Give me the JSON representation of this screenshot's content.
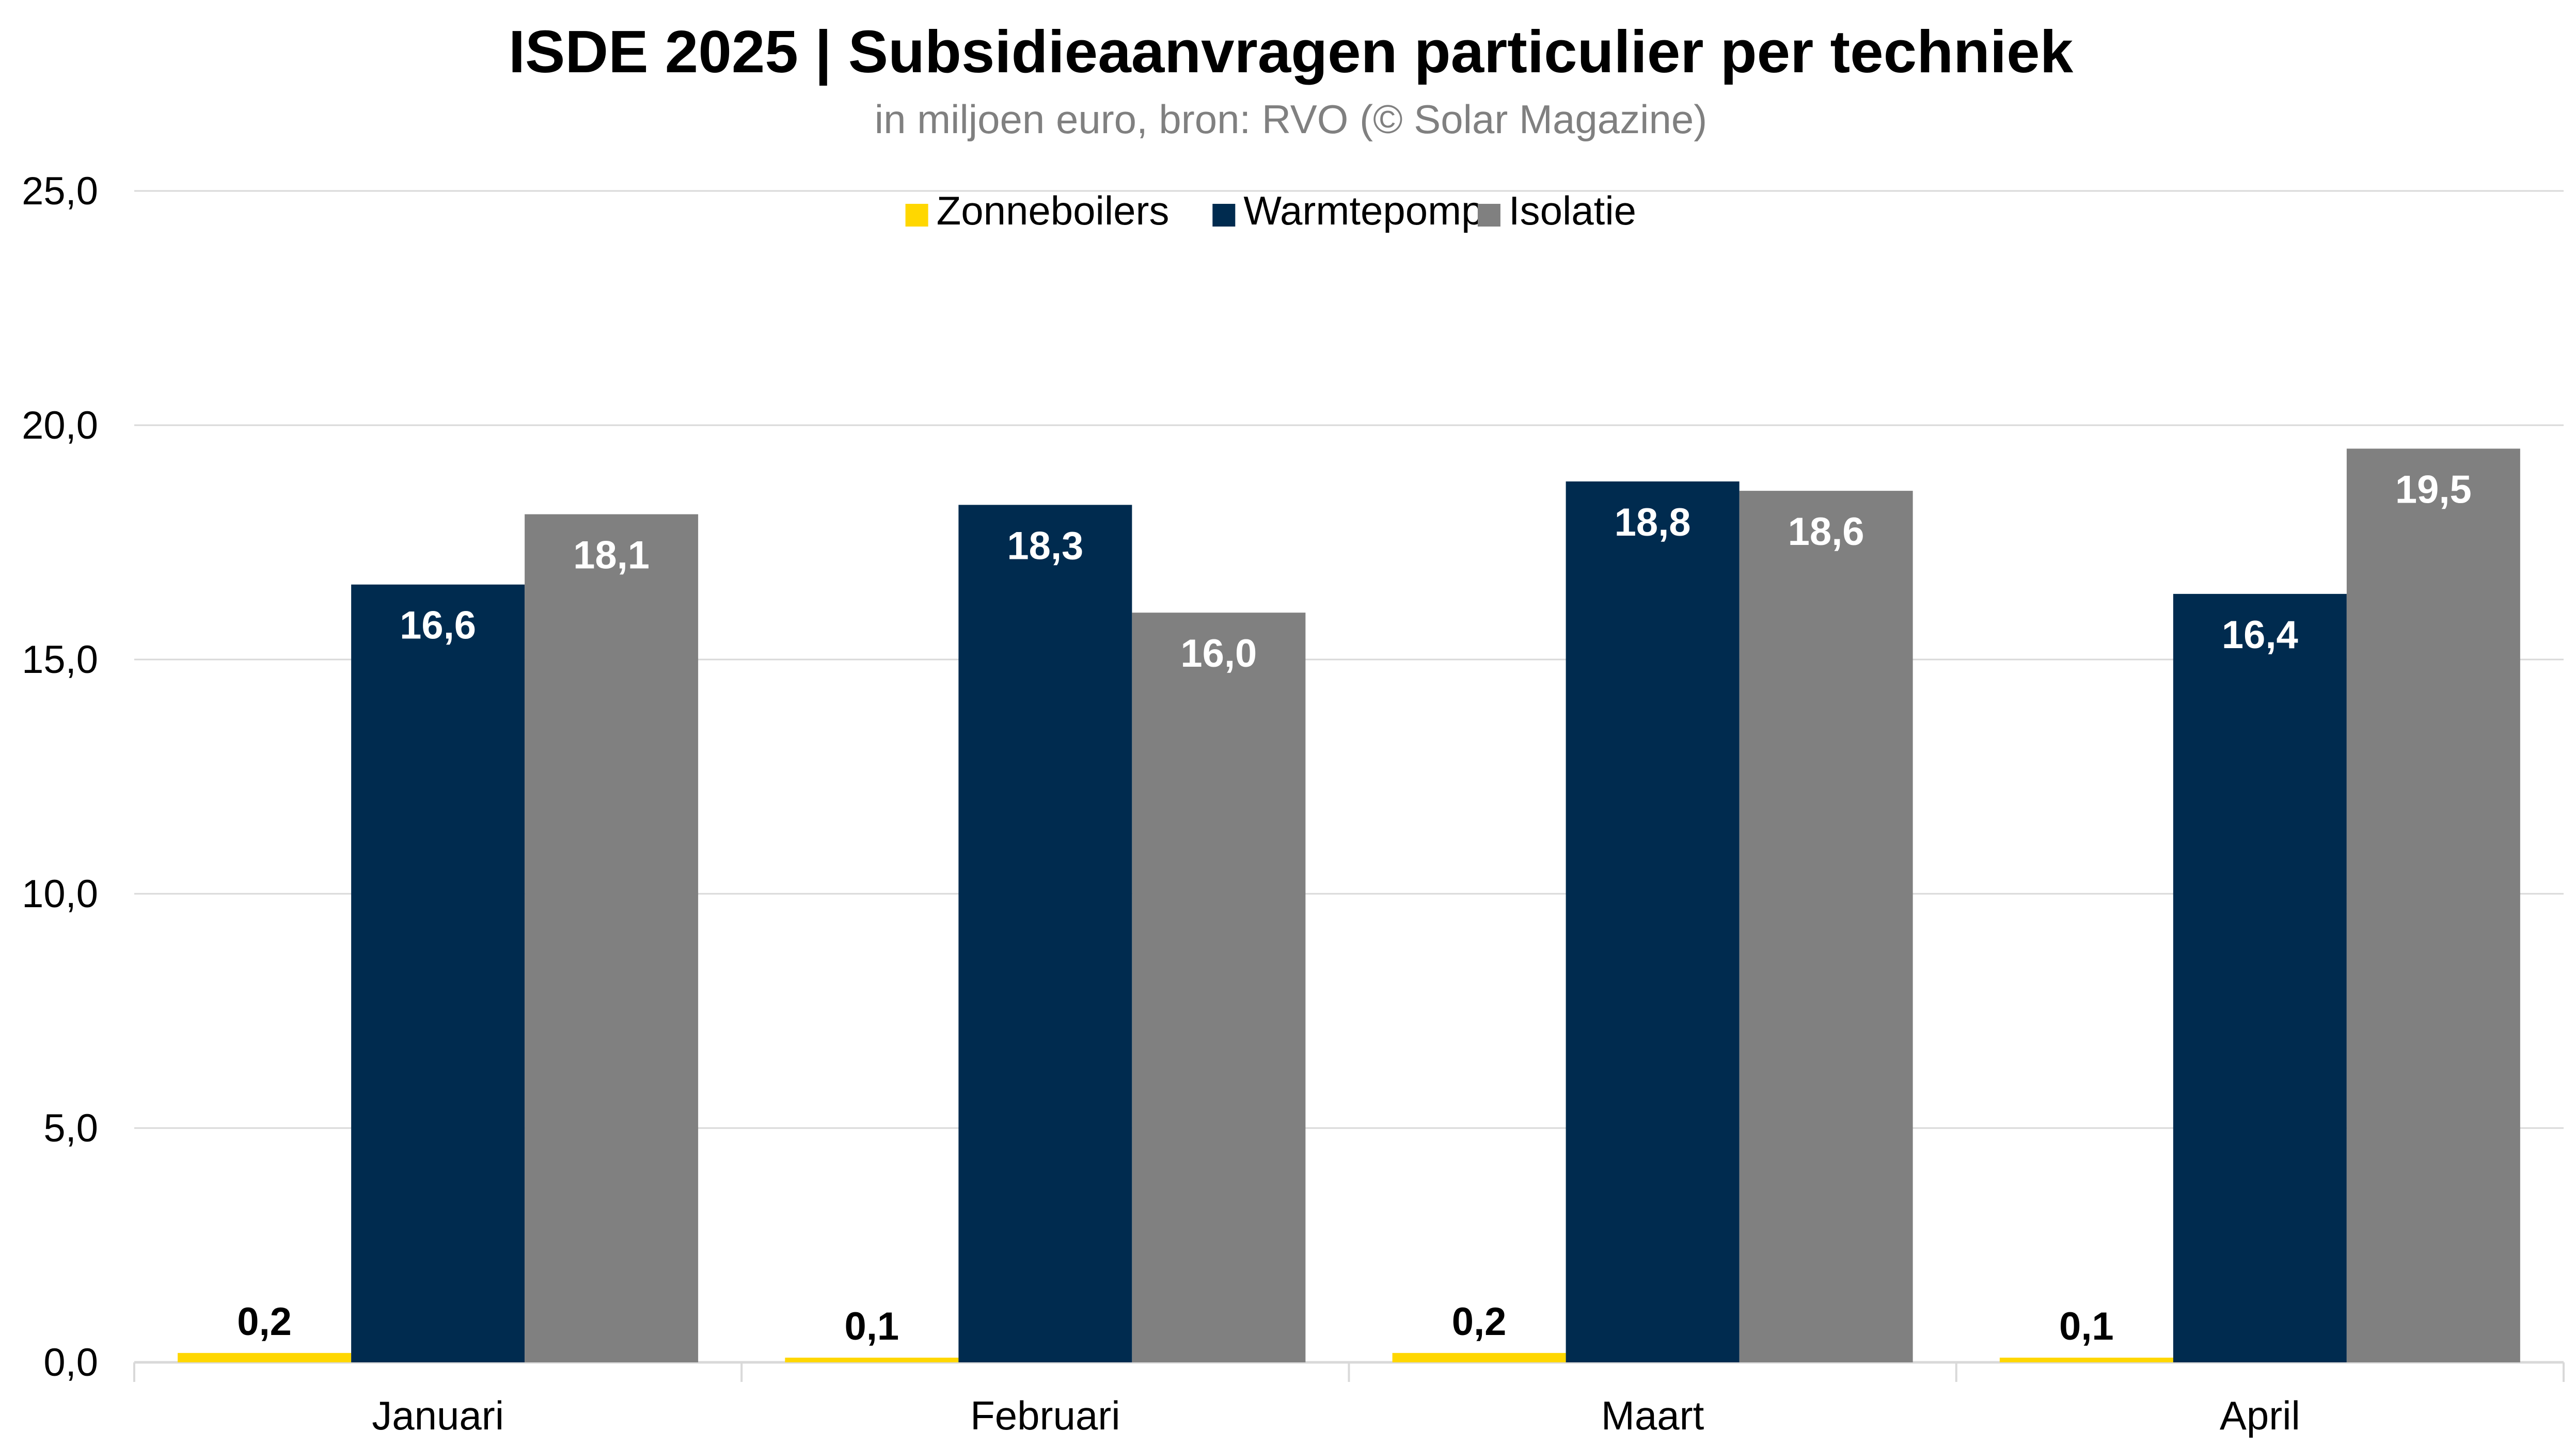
{
  "chart_data": {
    "type": "bar",
    "title": "ISDE 2025 | Subsidieaanvragen particulier per techniek",
    "subtitle": "in miljoen euro, bron: RVO (© Solar Magazine)",
    "xlabel": "",
    "ylabel": "",
    "categories": [
      "Januari",
      "Februari",
      "Maart",
      "April"
    ],
    "series": [
      {
        "name": "Zonneboilers",
        "color": "#FFD700",
        "values": [
          0.2,
          0.1,
          0.2,
          0.1
        ],
        "labels": [
          "0,2",
          "0,1",
          "0,2",
          "0,1"
        ]
      },
      {
        "name": "Warmtepomp",
        "color": "#002B4F",
        "values": [
          16.6,
          18.3,
          18.8,
          16.4
        ],
        "labels": [
          "16,6",
          "18,3",
          "18,8",
          "16,4"
        ]
      },
      {
        "name": "Isolatie",
        "color": "#808080",
        "values": [
          18.1,
          16.0,
          18.6,
          19.5
        ],
        "labels": [
          "18,1",
          "16,0",
          "18,6",
          "19,5"
        ]
      }
    ],
    "ylim": [
      0,
      25
    ],
    "yticks": [
      0,
      5,
      10,
      15,
      20,
      25
    ],
    "ytick_labels": [
      "0,0",
      "5,0",
      "10,0",
      "15,0",
      "20,0",
      "25,0"
    ],
    "grid": true,
    "legend_position": "top-center"
  }
}
